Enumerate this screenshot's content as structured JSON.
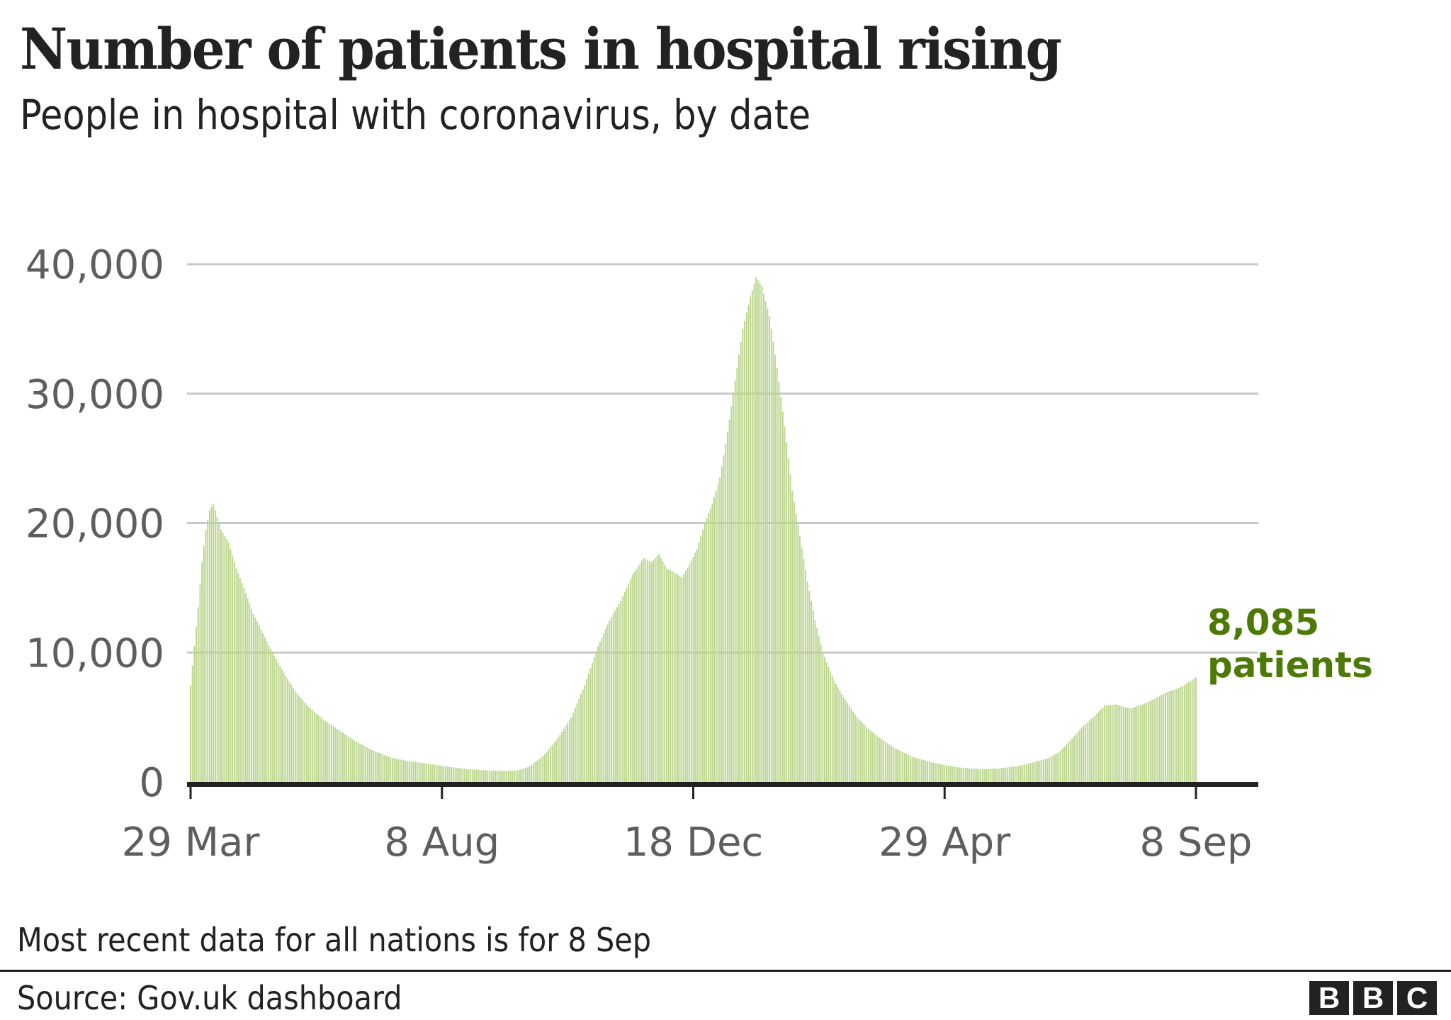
{
  "header": {
    "title": "Number of patients in hospital rising",
    "subtitle": "People in hospital with coronavirus, by date"
  },
  "footer": {
    "note": "Most recent data for all nations is for 8 Sep",
    "source": "Source: Gov.uk dashboard",
    "logo_letters": [
      "B",
      "B",
      "C"
    ]
  },
  "colors": {
    "bar": "#bcd68f",
    "bar_edge": "#9fc36a",
    "annotation": "#4d7a06",
    "gridline": "#c8c8c8",
    "axis": "#222222",
    "tick_text": "#5e5e60"
  },
  "chart_data": {
    "type": "bar",
    "title": "Number of patients in hospital rising",
    "subtitle": "People in hospital with coronavirus, by date",
    "xlabel": "",
    "ylabel": "",
    "ylim": [
      0,
      40000
    ],
    "yticks": [
      0,
      10000,
      20000,
      30000,
      40000
    ],
    "ytick_labels": [
      "0",
      "10,000",
      "20,000",
      "30,000",
      "40,000"
    ],
    "grid": true,
    "x_start": "2020-03-29",
    "x_end": "2021-09-08",
    "xticks": [
      {
        "day": 0,
        "label": "29 Mar"
      },
      {
        "day": 132,
        "label": "8 Aug"
      },
      {
        "day": 264,
        "label": "18 Dec"
      },
      {
        "day": 396,
        "label": "29 Apr"
      },
      {
        "day": 528,
        "label": "8 Sep"
      }
    ],
    "series": [
      {
        "name": "Patients in hospital",
        "note": "Daily values, approximate keypoints (day offset from 29 Mar 2020, value)",
        "keypoints": [
          [
            0,
            7500
          ],
          [
            2,
            10500
          ],
          [
            4,
            13500
          ],
          [
            6,
            17000
          ],
          [
            8,
            19500
          ],
          [
            10,
            21000
          ],
          [
            12,
            21500
          ],
          [
            14,
            20500
          ],
          [
            16,
            19500
          ],
          [
            20,
            18500
          ],
          [
            24,
            16500
          ],
          [
            28,
            15000
          ],
          [
            33,
            13000
          ],
          [
            38,
            11500
          ],
          [
            43,
            10000
          ],
          [
            48,
            8700
          ],
          [
            55,
            7000
          ],
          [
            62,
            5800
          ],
          [
            70,
            4800
          ],
          [
            78,
            4000
          ],
          [
            86,
            3200
          ],
          [
            95,
            2500
          ],
          [
            105,
            1900
          ],
          [
            115,
            1600
          ],
          [
            125,
            1400
          ],
          [
            132,
            1250
          ],
          [
            145,
            1000
          ],
          [
            155,
            900
          ],
          [
            165,
            850
          ],
          [
            172,
            900
          ],
          [
            178,
            1200
          ],
          [
            185,
            2000
          ],
          [
            192,
            3200
          ],
          [
            200,
            5000
          ],
          [
            207,
            7500
          ],
          [
            214,
            10500
          ],
          [
            220,
            12500
          ],
          [
            226,
            14000
          ],
          [
            232,
            16000
          ],
          [
            238,
            17300
          ],
          [
            242,
            17000
          ],
          [
            246,
            17600
          ],
          [
            250,
            16500
          ],
          [
            254,
            16200
          ],
          [
            258,
            15800
          ],
          [
            262,
            16800
          ],
          [
            266,
            18000
          ],
          [
            270,
            20000
          ],
          [
            274,
            21500
          ],
          [
            278,
            23500
          ],
          [
            282,
            27000
          ],
          [
            286,
            31000
          ],
          [
            290,
            35000
          ],
          [
            294,
            37500
          ],
          [
            297,
            39000
          ],
          [
            300,
            38300
          ],
          [
            304,
            36000
          ],
          [
            308,
            32000
          ],
          [
            312,
            27500
          ],
          [
            316,
            22500
          ],
          [
            320,
            19000
          ],
          [
            324,
            15500
          ],
          [
            328,
            12500
          ],
          [
            332,
            10000
          ],
          [
            338,
            7800
          ],
          [
            344,
            6300
          ],
          [
            350,
            5000
          ],
          [
            356,
            4100
          ],
          [
            362,
            3400
          ],
          [
            370,
            2600
          ],
          [
            380,
            1900
          ],
          [
            390,
            1500
          ],
          [
            396,
            1300
          ],
          [
            405,
            1100
          ],
          [
            415,
            1000
          ],
          [
            425,
            1050
          ],
          [
            435,
            1250
          ],
          [
            442,
            1500
          ],
          [
            450,
            1800
          ],
          [
            456,
            2300
          ],
          [
            462,
            3200
          ],
          [
            468,
            4200
          ],
          [
            474,
            5000
          ],
          [
            480,
            5900
          ],
          [
            486,
            6000
          ],
          [
            490,
            5800
          ],
          [
            494,
            5700
          ],
          [
            500,
            6000
          ],
          [
            506,
            6400
          ],
          [
            512,
            6900
          ],
          [
            518,
            7200
          ],
          [
            522,
            7500
          ],
          [
            526,
            7900
          ],
          [
            528,
            8085
          ]
        ]
      }
    ],
    "annotation": {
      "value": 8085,
      "value_label": "8,085",
      "unit_label": "patients",
      "date": "8 Sep",
      "placement": "right of last bar"
    }
  }
}
